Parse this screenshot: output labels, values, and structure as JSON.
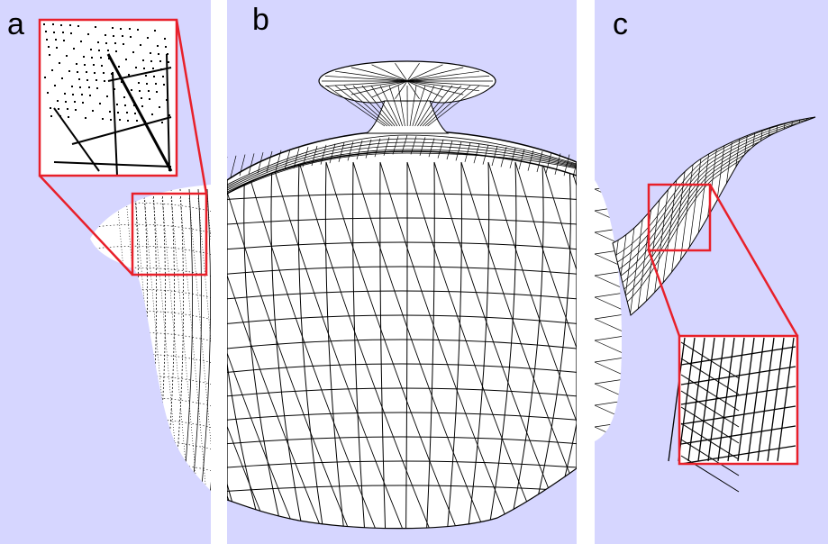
{
  "panels": [
    {
      "label": "a",
      "description_icon": "teapot-wireframe-stippled-icon"
    },
    {
      "label": "b",
      "description_icon": "teapot-wireframe-full-icon"
    },
    {
      "label": "c",
      "description_icon": "teapot-wireframe-spout-icon"
    }
  ],
  "colors": {
    "background": "#d6d6ff",
    "mesh_fill": "#ffffff",
    "mesh_line": "#000000",
    "highlight": "#e8202a"
  }
}
